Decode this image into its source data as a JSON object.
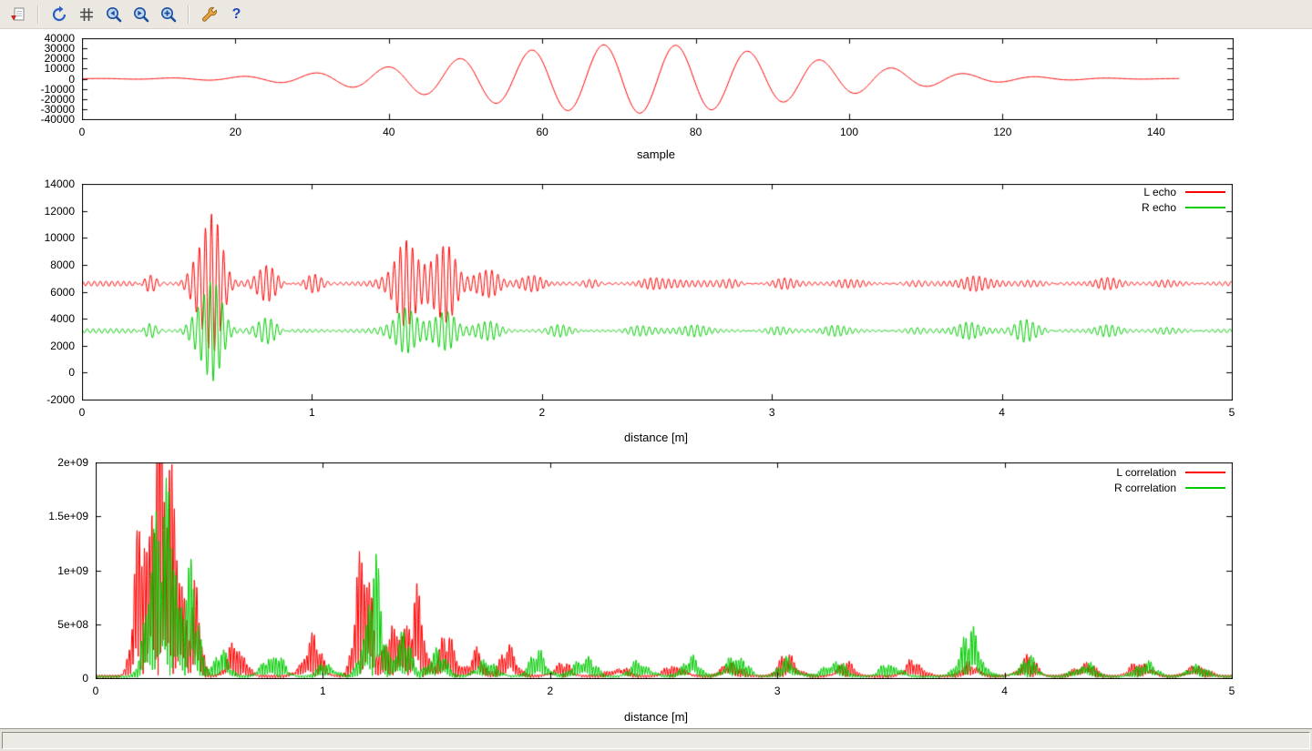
{
  "window": {
    "toolbar_background": "#ebe8e2",
    "canvas_background": "#ffffff",
    "accent_red": "#ff0000",
    "accent_green": "#00cc00"
  },
  "toolbar": {
    "buttons": [
      {
        "icon": "export-icon"
      },
      {
        "icon": "replot-icon"
      },
      {
        "icon": "grid-icon"
      },
      {
        "icon": "zoom-previous-icon"
      },
      {
        "icon": "zoom-next-icon"
      },
      {
        "icon": "autoscale-icon"
      },
      {
        "icon": "config-icon"
      },
      {
        "icon": "help-icon"
      }
    ],
    "help_glyph": "?"
  },
  "status_bar": {
    "text": ""
  },
  "chart_data": [
    {
      "type": "line",
      "title": "",
      "xlabel": "sample",
      "xlim": [
        0,
        150
      ],
      "ylim": [
        -40000,
        40000
      ],
      "xticks": [
        0,
        20,
        40,
        60,
        80,
        100,
        120,
        140
      ],
      "xtick_labels": [
        "0",
        "20",
        "40",
        "60",
        "80",
        "100",
        "120",
        "140"
      ],
      "yticks": [
        -40000,
        -30000,
        -20000,
        -10000,
        0,
        10000,
        20000,
        30000,
        40000
      ],
      "ytick_labels": [
        "-40000",
        "-30000",
        "-20000",
        "-10000",
        "0",
        "10000",
        "20000",
        "30000",
        "40000"
      ],
      "grid": false,
      "legend": null,
      "series": [
        {
          "name": "",
          "color": "#ff0000",
          "description": "chirp pulse: flat near 0 until sample ~25, oscillation period ~9.4 samples, gaussian envelope centered ~sample 72, peak amplitude ~34000, decays to 0 by sample ~140, data ends at sample 143",
          "signal": {
            "kind": "smooth",
            "baseline": 0,
            "period": 9.4,
            "x0": 68,
            "phase": 1.5708,
            "xrange": [
              0,
              143
            ],
            "samples": 1000,
            "bursts": [
              [
                72,
                22,
                34000
              ]
            ]
          }
        }
      ]
    },
    {
      "type": "line",
      "title": "",
      "xlabel": "distance [m]",
      "xlim": [
        0,
        5
      ],
      "ylim": [
        -2000,
        14000
      ],
      "xticks": [
        0,
        1,
        2,
        3,
        4,
        5
      ],
      "xtick_labels": [
        "0",
        "1",
        "2",
        "3",
        "4",
        "5"
      ],
      "yticks": [
        -2000,
        0,
        2000,
        4000,
        6000,
        8000,
        10000,
        12000,
        14000
      ],
      "ytick_labels": [
        "-2000",
        "0",
        "2000",
        "4000",
        "6000",
        "8000",
        "10000",
        "12000",
        "14000"
      ],
      "grid": false,
      "legend": "top-right",
      "series": [
        {
          "name": "L echo",
          "color": "#ff0000",
          "description": "echo around baseline 6600, main burst at 0.55 m peaking ~13400, second burst cluster 1.35-1.65 m peaking ~10400, small packets thereafter",
          "signal": {
            "kind": "am",
            "baseline": 6600,
            "period": 0.0265,
            "phase": 0,
            "ripple": 210,
            "xrange": [
              0,
              5
            ],
            "samples": 2600,
            "bursts": [
              [
                0.3,
                0.025,
                1300
              ],
              [
                0.55,
                0.045,
                7000
              ],
              [
                0.8,
                0.05,
                1500
              ],
              [
                1.0,
                0.04,
                800
              ],
              [
                1.4,
                0.05,
                3400
              ],
              [
                1.56,
                0.05,
                4200
              ],
              [
                1.75,
                0.045,
                1600
              ],
              [
                1.95,
                0.04,
                900
              ],
              [
                2.2,
                0.05,
                500
              ],
              [
                2.5,
                0.06,
                380
              ],
              [
                2.8,
                0.06,
                520
              ],
              [
                3.05,
                0.06,
                420
              ],
              [
                3.35,
                0.05,
                480
              ],
              [
                3.6,
                0.06,
                380
              ],
              [
                3.9,
                0.06,
                420
              ],
              [
                4.15,
                0.05,
                520
              ],
              [
                4.45,
                0.06,
                380
              ],
              [
                4.75,
                0.06,
                400
              ]
            ]
          }
        },
        {
          "name": "R echo",
          "color": "#00cc00",
          "description": "echo around baseline 3100, main burst at 0.55 m peaking ~7900 and dipping to ~-1900, second burst 1.35-1.65 m peaking ~5200, packet near 4.1 m",
          "signal": {
            "kind": "am",
            "baseline": 3100,
            "period": 0.0265,
            "phase": 1.3,
            "ripple": 190,
            "xrange": [
              0,
              5
            ],
            "samples": 2600,
            "bursts": [
              [
                0.3,
                0.025,
                1100
              ],
              [
                0.55,
                0.045,
                5000
              ],
              [
                0.8,
                0.05,
                1100
              ],
              [
                1.4,
                0.05,
                1800
              ],
              [
                1.56,
                0.05,
                2200
              ],
              [
                1.75,
                0.045,
                1100
              ],
              [
                2.1,
                0.05,
                650
              ],
              [
                2.4,
                0.06,
                380
              ],
              [
                2.7,
                0.06,
                420
              ],
              [
                3.0,
                0.06,
                380
              ],
              [
                3.3,
                0.06,
                420
              ],
              [
                3.6,
                0.06,
                380
              ],
              [
                3.85,
                0.05,
                480
              ],
              [
                4.12,
                0.05,
                1150
              ],
              [
                4.45,
                0.06,
                380
              ],
              [
                4.75,
                0.06,
                380
              ]
            ]
          }
        }
      ]
    },
    {
      "type": "line",
      "title": "",
      "xlabel": "distance [m]",
      "xlim": [
        0,
        5
      ],
      "ylim": [
        0,
        2000000000.0
      ],
      "xticks": [
        0,
        1,
        2,
        3,
        4,
        5
      ],
      "xtick_labels": [
        "0",
        "1",
        "2",
        "3",
        "4",
        "5"
      ],
      "yticks": [
        0,
        500000000.0,
        1000000000.0,
        1500000000.0,
        2000000000.0
      ],
      "ytick_labels": [
        "0",
        "5e+08",
        "1e+09",
        "1.5e+09",
        "2e+09"
      ],
      "grid": false,
      "legend": "top-right",
      "series": [
        {
          "name": "L correlation",
          "color": "#ff0000",
          "description": "rectified correlation: dominant cluster 0.15-0.45 m clipped at 2e9, peak ~1.7e9 at 1.2 m, ~9.5e8 at 1.4 m, ~5e8 at 1.55 m, small bumps 1e8-2.5e8 across 2-5 m",
          "signal": {
            "kind": "rect",
            "period": 0.022,
            "phase": 0,
            "floor": 30000000.0,
            "xrange": [
              0,
              5
            ],
            "samples": 2800,
            "bursts": [
              [
                0.2,
                0.03,
                1600000000.0
              ],
              [
                0.27,
                0.035,
                2700000000.0
              ],
              [
                0.35,
                0.03,
                2200000000.0
              ],
              [
                0.44,
                0.025,
                900000000.0
              ],
              [
                0.62,
                0.035,
                450000000.0
              ],
              [
                0.95,
                0.04,
                450000000.0
              ],
              [
                1.18,
                0.03,
                1900000000.0
              ],
              [
                1.32,
                0.035,
                800000000.0
              ],
              [
                1.42,
                0.03,
                950000000.0
              ],
              [
                1.55,
                0.035,
                500000000.0
              ],
              [
                1.68,
                0.03,
                300000000.0
              ],
              [
                1.82,
                0.035,
                350000000.0
              ],
              [
                2.05,
                0.04,
                150000000.0
              ],
              [
                2.3,
                0.04,
                120000000.0
              ],
              [
                2.55,
                0.04,
                150000000.0
              ],
              [
                2.8,
                0.04,
                180000000.0
              ],
              [
                3.05,
                0.04,
                250000000.0
              ],
              [
                3.3,
                0.04,
                150000000.0
              ],
              [
                3.6,
                0.04,
                180000000.0
              ],
              [
                3.85,
                0.04,
                150000000.0
              ],
              [
                4.1,
                0.04,
                220000000.0
              ],
              [
                4.35,
                0.04,
                180000000.0
              ],
              [
                4.6,
                0.04,
                200000000.0
              ],
              [
                4.85,
                0.04,
                150000000.0
              ]
            ]
          }
        },
        {
          "name": "R correlation",
          "color": "#00cc00",
          "description": "rectified correlation: cluster 0.2-0.45 m peaking ~1.9e9, ~1.25e9 at 1.25 m, notable bump ~5.3e8 at 3.85 m, bumps ~2e8-3e8 across 1.5-5 m",
          "signal": {
            "kind": "rect",
            "period": 0.022,
            "phase": 0.9,
            "floor": 25000000.0,
            "xrange": [
              0,
              5
            ],
            "samples": 2800,
            "bursts": [
              [
                0.25,
                0.03,
                1700000000.0
              ],
              [
                0.33,
                0.035,
                1950000000.0
              ],
              [
                0.42,
                0.03,
                1100000000.0
              ],
              [
                0.55,
                0.035,
                300000000.0
              ],
              [
                0.78,
                0.04,
                320000000.0
              ],
              [
                1.02,
                0.035,
                180000000.0
              ],
              [
                1.22,
                0.035,
                1350000000.0
              ],
              [
                1.35,
                0.03,
                600000000.0
              ],
              [
                1.5,
                0.04,
                320000000.0
              ],
              [
                1.72,
                0.04,
                220000000.0
              ],
              [
                1.95,
                0.04,
                280000000.0
              ],
              [
                2.15,
                0.04,
                280000000.0
              ],
              [
                2.4,
                0.04,
                200000000.0
              ],
              [
                2.62,
                0.04,
                220000000.0
              ],
              [
                2.82,
                0.04,
                300000000.0
              ],
              [
                3.05,
                0.04,
                200000000.0
              ],
              [
                3.25,
                0.04,
                220000000.0
              ],
              [
                3.5,
                0.04,
                180000000.0
              ],
              [
                3.85,
                0.045,
                530000000.0
              ],
              [
                4.1,
                0.04,
                220000000.0
              ],
              [
                4.35,
                0.04,
                180000000.0
              ],
              [
                4.62,
                0.04,
                200000000.0
              ],
              [
                4.85,
                0.04,
                150000000.0
              ]
            ]
          }
        }
      ]
    }
  ]
}
